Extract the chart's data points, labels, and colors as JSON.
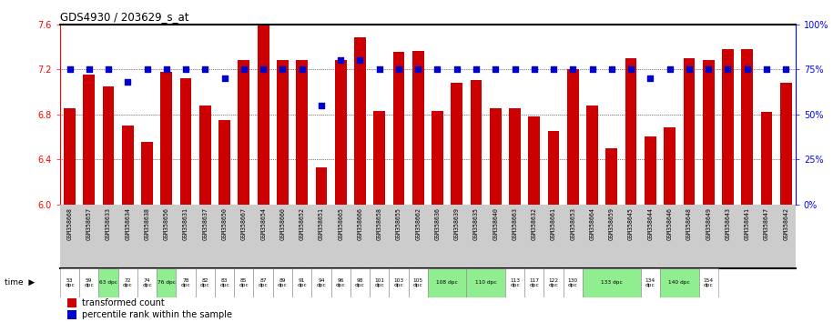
{
  "title": "GDS4930 / 203629_s_at",
  "categories": [
    "GSM358668",
    "GSM358657",
    "GSM358633",
    "GSM358634",
    "GSM358638",
    "GSM358656",
    "GSM358631",
    "GSM358637",
    "GSM358650",
    "GSM358667",
    "GSM358654",
    "GSM358660",
    "GSM358652",
    "GSM358651",
    "GSM358665",
    "GSM358666",
    "GSM358658",
    "GSM358655",
    "GSM358662",
    "GSM358636",
    "GSM358639",
    "GSM358635",
    "GSM358640",
    "GSM358663",
    "GSM358632",
    "GSM358661",
    "GSM358653",
    "GSM358664",
    "GSM358659",
    "GSM358645",
    "GSM358644",
    "GSM358646",
    "GSM358648",
    "GSM358649",
    "GSM358643",
    "GSM358641",
    "GSM358647",
    "GSM358642"
  ],
  "bar_values": [
    6.85,
    7.15,
    7.05,
    6.7,
    6.55,
    7.18,
    7.12,
    6.88,
    6.75,
    7.28,
    7.59,
    7.28,
    7.28,
    6.33,
    7.28,
    7.48,
    6.83,
    7.35,
    7.36,
    6.83,
    7.08,
    7.1,
    6.85,
    6.85,
    6.78,
    6.65,
    7.2,
    6.88,
    6.5,
    7.3,
    6.6,
    6.68,
    7.3,
    7.28,
    7.38,
    7.38,
    6.82,
    7.08
  ],
  "percentile_values": [
    75,
    75,
    75,
    68,
    75,
    75,
    75,
    75,
    70,
    75,
    75,
    75,
    75,
    55,
    80,
    80,
    75,
    75,
    75,
    75,
    75,
    75,
    75,
    75,
    75,
    75,
    75,
    75,
    75,
    75,
    70,
    75,
    75,
    75,
    75,
    75,
    75,
    75
  ],
  "time_groups": [
    {
      "label": "53\ndpc",
      "span": 1,
      "bg": "white"
    },
    {
      "label": "59\ndpc",
      "span": 1,
      "bg": "white"
    },
    {
      "label": "63 dpc",
      "span": 1,
      "bg": "#90EE90"
    },
    {
      "label": "72\ndpc",
      "span": 1,
      "bg": "white"
    },
    {
      "label": "74\ndpc",
      "span": 1,
      "bg": "white"
    },
    {
      "label": "76 dpc",
      "span": 1,
      "bg": "#90EE90"
    },
    {
      "label": "78\ndpc",
      "span": 1,
      "bg": "white"
    },
    {
      "label": "82\ndpc",
      "span": 1,
      "bg": "white"
    },
    {
      "label": "83\ndpc",
      "span": 1,
      "bg": "white"
    },
    {
      "label": "85\ndpc",
      "span": 1,
      "bg": "white"
    },
    {
      "label": "87\ndpc",
      "span": 1,
      "bg": "white"
    },
    {
      "label": "89\ndpc",
      "span": 1,
      "bg": "white"
    },
    {
      "label": "91\ndpc",
      "span": 1,
      "bg": "white"
    },
    {
      "label": "94\ndpc",
      "span": 1,
      "bg": "white"
    },
    {
      "label": "96\ndpc",
      "span": 1,
      "bg": "white"
    },
    {
      "label": "98\ndpc",
      "span": 1,
      "bg": "white"
    },
    {
      "label": "101\ndpc",
      "span": 1,
      "bg": "white"
    },
    {
      "label": "103\ndpc",
      "span": 1,
      "bg": "white"
    },
    {
      "label": "105\ndpc",
      "span": 1,
      "bg": "white"
    },
    {
      "label": "108 dpc",
      "span": 2,
      "bg": "#90EE90"
    },
    {
      "label": "110 dpc",
      "span": 2,
      "bg": "#90EE90"
    },
    {
      "label": "113\ndpc",
      "span": 1,
      "bg": "white"
    },
    {
      "label": "117\ndpc",
      "span": 1,
      "bg": "white"
    },
    {
      "label": "122\ndpc",
      "span": 1,
      "bg": "white"
    },
    {
      "label": "130\ndpc",
      "span": 1,
      "bg": "white"
    },
    {
      "label": "133 dpc",
      "span": 3,
      "bg": "#90EE90"
    },
    {
      "label": "134\ndpc",
      "span": 1,
      "bg": "white"
    },
    {
      "label": "140 dpc",
      "span": 2,
      "bg": "#90EE90"
    },
    {
      "label": "154\ndpc",
      "span": 1,
      "bg": "white"
    }
  ],
  "ylim": [
    6.0,
    7.6
  ],
  "yticks": [
    6.0,
    6.4,
    6.8,
    7.2,
    7.6
  ],
  "right_yticks": [
    0,
    25,
    50,
    75,
    100
  ],
  "right_ylabels": [
    "0%",
    "25%",
    "50%",
    "75%",
    "100%"
  ],
  "bar_color": "#CC0000",
  "dot_color": "#0000CC",
  "bar_width": 0.6,
  "legend_red": "transformed count",
  "legend_blue": "percentile rank within the sample",
  "gsm_bg": "#CCCCCC",
  "chart_bg": "white"
}
